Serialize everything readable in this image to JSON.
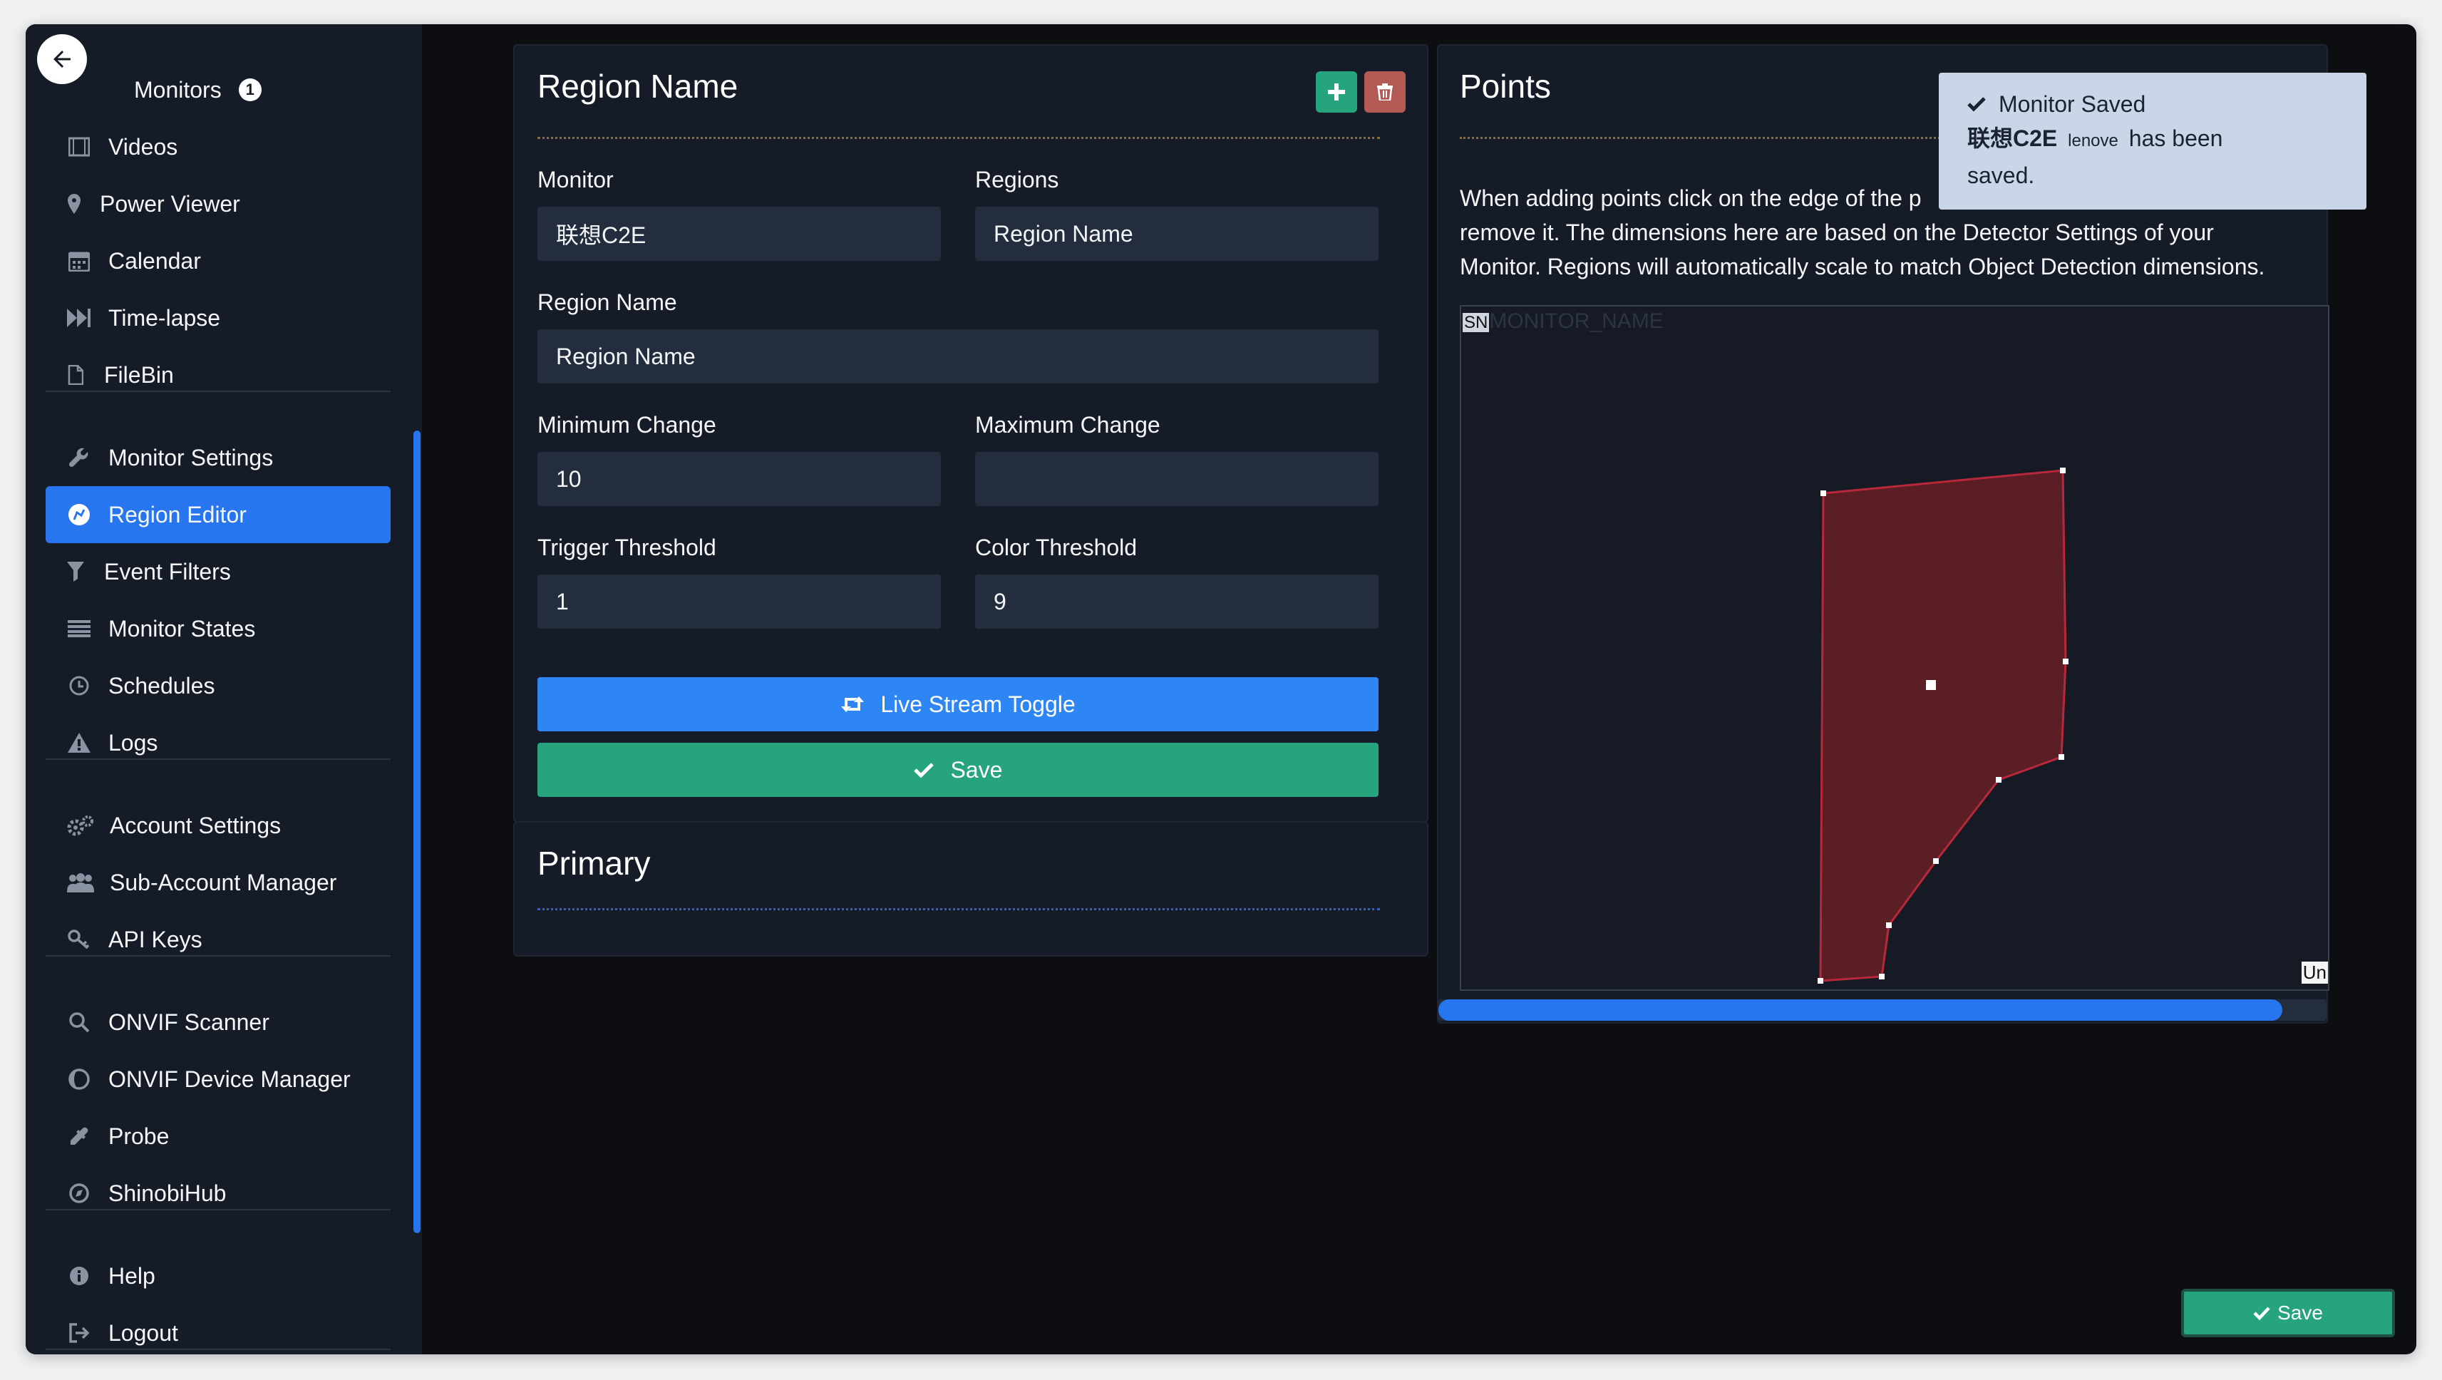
{
  "sidebar": {
    "items": [
      {
        "label": "Monitors",
        "icon": "monitors-icon",
        "badge": "1"
      },
      {
        "label": "Videos",
        "icon": "film-icon"
      },
      {
        "label": "Power Viewer",
        "icon": "map-pin-icon"
      },
      {
        "label": "Calendar",
        "icon": "calendar-icon"
      },
      {
        "label": "Time-lapse",
        "icon": "fast-forward-icon"
      },
      {
        "label": "FileBin",
        "icon": "file-icon"
      },
      {
        "label": "Monitor Settings",
        "icon": "wrench-icon"
      },
      {
        "label": "Region Editor",
        "icon": "region-editor-icon",
        "active": true
      },
      {
        "label": "Event Filters",
        "icon": "filter-icon"
      },
      {
        "label": "Monitor States",
        "icon": "list-icon"
      },
      {
        "label": "Schedules",
        "icon": "clock-icon"
      },
      {
        "label": "Logs",
        "icon": "warning-icon"
      },
      {
        "label": "Account Settings",
        "icon": "cogs-icon"
      },
      {
        "label": "Sub-Account Manager",
        "icon": "users-icon"
      },
      {
        "label": "API Keys",
        "icon": "key-icon"
      },
      {
        "label": "ONVIF Scanner",
        "icon": "search-icon"
      },
      {
        "label": "ONVIF Device Manager",
        "icon": "device-manager-icon"
      },
      {
        "label": "Probe",
        "icon": "eyedropper-icon"
      },
      {
        "label": "ShinobiHub",
        "icon": "compass-icon"
      },
      {
        "label": "Help",
        "icon": "info-icon"
      },
      {
        "label": "Logout",
        "icon": "logout-icon"
      }
    ]
  },
  "region_panel": {
    "title": "Region Name",
    "monitor_label": "Monitor",
    "monitor_value": "联想C2E",
    "regions_label": "Regions",
    "regions_value": "Region Name",
    "region_name_label": "Region Name",
    "region_name_value": "Region Name",
    "min_change_label": "Minimum Change",
    "min_change_value": "10",
    "max_change_label": "Maximum Change",
    "max_change_value": "",
    "trigger_threshold_label": "Trigger Threshold",
    "trigger_threshold_value": "1",
    "color_threshold_label": "Color Threshold",
    "color_threshold_value": "9",
    "live_stream_toggle_label": "Live Stream Toggle",
    "save_label": "Save"
  },
  "primary_panel": {
    "title": "Primary"
  },
  "points_panel": {
    "title": "Points",
    "description_line1": "When adding points click on the edge of the p",
    "description_line2": "remove it. The dimensions here are based on th",
    "description_line2_tail": "e Detector Settings of your",
    "description_line3": "Monitor. Regions will automatically scale to match Object Detection dimensions.",
    "canvas_overlay_text": "MONITOR_NAME",
    "canvas_overlay_prefix": "SN",
    "canvas_corner_label": "Un",
    "progress_fraction": 0.95
  },
  "toast": {
    "title": "Monitor Saved",
    "monitor_name": "联想C2E",
    "monitor_id": "lenove",
    "message_tail": "has been",
    "message_end": "saved."
  },
  "floating_save": {
    "label": "Save"
  },
  "colors": {
    "accent": "#2776f0",
    "success": "#25a47d",
    "danger": "#b34a4a",
    "region_fill": "#5a1e24",
    "region_stroke": "#b8283a"
  }
}
